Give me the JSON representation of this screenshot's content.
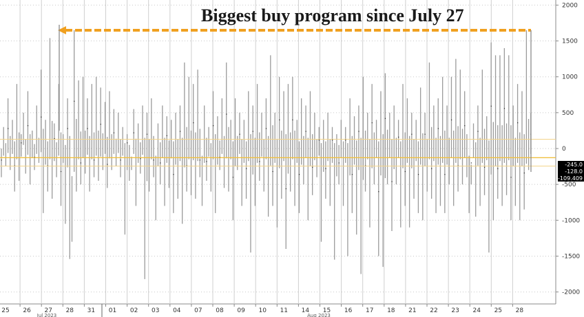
{
  "chart_data": {
    "type": "bar",
    "title": "Biggest buy program since July 27",
    "ylim": [
      -2100,
      2100
    ],
    "yticks": [
      2000,
      1500,
      1000,
      500,
      0,
      -500,
      -1000,
      -1500,
      -2000
    ],
    "ytick_labels": [
      "2000",
      "1500",
      "1000",
      "500",
      "0",
      "-500",
      "-1000",
      "-1500",
      "-2000"
    ],
    "x_day_labels": [
      "25",
      "26",
      "27",
      "28",
      "31",
      "01",
      "02",
      "03",
      "04",
      "07",
      "08",
      "09",
      "10",
      "11",
      "14",
      "15",
      "16",
      "17",
      "18",
      "21",
      "22",
      "23",
      "24",
      "25",
      "28"
    ],
    "month_labels": [
      "Jul 2023",
      "Aug 2023"
    ],
    "last_value_labels": [
      "-245.0",
      "-128.0",
      "-109.409"
    ],
    "reference_lines": [
      130,
      -128,
      -245
    ],
    "arrow_level": 1650,
    "arrow_color": "#f0a020",
    "bar_color": "#9a9a9a",
    "grid": true,
    "series": [
      {
        "values": [
          -400,
          300,
          -250,
          700,
          -300,
          400,
          -600,
          900,
          -450,
          200,
          500,
          -350,
          800,
          -500,
          250,
          -300,
          600,
          -200,
          1100,
          -900,
          400,
          -600,
          1540,
          -700,
          350,
          -400,
          900,
          -800,
          200,
          -1050,
          700,
          -1540,
          -1300,
          1650,
          -600,
          950,
          -500,
          1000,
          -350,
          700,
          -600,
          900,
          -400,
          1000,
          -450,
          850,
          -300,
          650,
          -550,
          800,
          -300,
          550,
          -250,
          500,
          -400,
          300,
          -1200,
          200,
          -450,
          -300,
          550,
          -800,
          350,
          -350,
          600,
          -1820,
          500,
          -600,
          700,
          -400,
          -1000,
          350,
          -500,
          600,
          -800,
          450,
          -550,
          400,
          -900,
          500,
          -700,
          600,
          -1050,
          1200,
          -600,
          1000,
          -650,
          900,
          -700,
          1100,
          -400,
          -800,
          600,
          -450,
          300,
          -600,
          800,
          -900,
          450,
          -300,
          700,
          -550,
          1200,
          -600,
          400,
          -1000,
          700,
          -300,
          500,
          -800,
          400,
          -700,
          800,
          -1450,
          600,
          -800,
          900,
          -450,
          500,
          -600,
          700,
          -950,
          1300,
          -800,
          500,
          -1100,
          1000,
          -700,
          800,
          -1400,
          900,
          -600,
          1000,
          -800,
          400,
          -900,
          700,
          -500,
          600,
          -1000,
          800,
          -650,
          500,
          -400,
          300,
          -1300,
          400,
          -700,
          500,
          -800,
          300,
          -1550,
          200,
          -500,
          400,
          -800,
          300,
          -1500,
          700,
          -900,
          450,
          -1200,
          600,
          -1750,
          1000,
          -600,
          500,
          -1100,
          900,
          -500,
          400,
          -1500,
          800,
          -1650,
          1050,
          -500,
          500,
          -1150,
          600,
          -500,
          400,
          -1100,
          900,
          -800,
          700,
          -1100,
          500,
          -700,
          400,
          -900,
          850,
          -1000,
          500,
          -600,
          1200,
          -700,
          600,
          -900,
          700,
          -800,
          1000,
          -900,
          600,
          -500,
          1000,
          -800,
          1250,
          -600,
          1100,
          -500,
          800,
          -400,
          -900,
          -500,
          350,
          -950,
          600,
          -800,
          1100,
          -650,
          450,
          -1450,
          1480,
          -1000,
          1300,
          -700,
          1300,
          -800,
          1400,
          -650,
          1300,
          -1000,
          600,
          -800,
          900,
          -1000,
          800,
          -850,
          1650,
          -300,
          500
        ]
      }
    ]
  }
}
